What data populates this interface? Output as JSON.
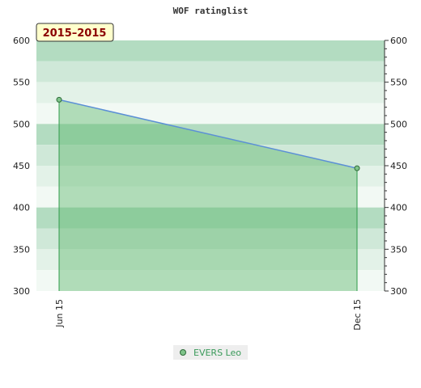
{
  "chart_data": {
    "type": "area",
    "title": "WOF ratinglist",
    "period_label": "2015–2015",
    "xlabel": "",
    "ylabel": "",
    "categories": [
      "Jun 15",
      "Dec 15"
    ],
    "series": [
      {
        "name": "EVERS Leo",
        "values": [
          529,
          447
        ]
      }
    ],
    "ylim": [
      300,
      600
    ],
    "y_ticks": [
      300,
      350,
      400,
      450,
      500,
      550,
      600
    ],
    "y_axis_both_sides": true,
    "legend_position": "bottom-center",
    "grid": "horizontal bands",
    "colors": {
      "line": "#5b8fd6",
      "area_fill": "#5fb86e",
      "marker_fill": "#7fc48a",
      "marker_stroke": "#2f6b3a",
      "drop_line": "#2e9a4a",
      "band_dark": "#b3dcc1",
      "band_mid": "#cfe8d8",
      "band_light": "#e3f2e8",
      "band_faint": "#f2f9f4",
      "range_box_fill": "#ffffcc",
      "range_box_text": "#8b0000"
    }
  }
}
